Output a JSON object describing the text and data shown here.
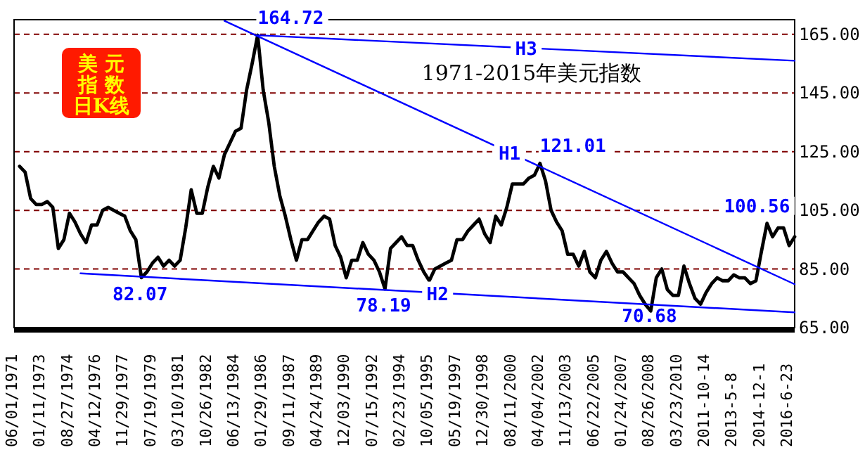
{
  "chart_data": {
    "type": "line",
    "title": "美元指数日K线",
    "subtitle": "1971-2015年美元指数",
    "categories": [
      "06/01/1971",
      null,
      null,
      null,
      null,
      "01/11/1973",
      null,
      null,
      null,
      null,
      "08/27/1974",
      null,
      null,
      null,
      null,
      "04/12/1976",
      null,
      null,
      null,
      null,
      "11/29/1977",
      null,
      null,
      null,
      null,
      "07/19/1979",
      null,
      null,
      null,
      null,
      "03/10/1981",
      null,
      null,
      null,
      null,
      "10/26/1982",
      null,
      null,
      null,
      null,
      "06/13/1984",
      null,
      null,
      null,
      null,
      "01/29/1986",
      null,
      null,
      null,
      null,
      "09/11/1987",
      null,
      null,
      null,
      null,
      "04/24/1989",
      null,
      null,
      null,
      null,
      "12/03/1990",
      null,
      null,
      null,
      null,
      "07/15/1992",
      null,
      null,
      null,
      null,
      "02/23/1994",
      null,
      null,
      null,
      null,
      "10/05/1995",
      null,
      null,
      null,
      null,
      "05/19/1997",
      null,
      null,
      null,
      null,
      "12/30/1998",
      null,
      null,
      null,
      null,
      "08/11/2000",
      null,
      null,
      null,
      null,
      "04/04/2002",
      null,
      null,
      null,
      null,
      "11/13/2003",
      null,
      null,
      null,
      null,
      "06/22/2005",
      null,
      null,
      null,
      null,
      "01/24/2007",
      null,
      null,
      null,
      null,
      "08/26/2008",
      null,
      null,
      null,
      null,
      "03/23/2010",
      null,
      null,
      null,
      null,
      "2011-10-14",
      null,
      null,
      null,
      null,
      "2013-5-8",
      null,
      null,
      null,
      null,
      "2014-12-1",
      null,
      null,
      null,
      null,
      "2016-6-23",
      null
    ],
    "series": [
      {
        "color": "#000000",
        "values": [
          null,
          120,
          118,
          109,
          107,
          107,
          108,
          106,
          92,
          95,
          104,
          101,
          97,
          94,
          100,
          100,
          105,
          106,
          105,
          104,
          103,
          98,
          95,
          82.07,
          84,
          87,
          89,
          86,
          88,
          86,
          88,
          99,
          112,
          104,
          104,
          113,
          120,
          116,
          124,
          128,
          132,
          133,
          146,
          155,
          164.72,
          146,
          135,
          120,
          110,
          103,
          95,
          88,
          95,
          95,
          98,
          101,
          103,
          102,
          93,
          89,
          82,
          88,
          88,
          94,
          90,
          88,
          84,
          78.19,
          92,
          94,
          96,
          93,
          93,
          88,
          84,
          81,
          85,
          86,
          87,
          88,
          95,
          95,
          98,
          100,
          102,
          97,
          94,
          103,
          100,
          106,
          114,
          114,
          114,
          116,
          117,
          121.01,
          115,
          105,
          101,
          98,
          90,
          90,
          86,
          91,
          84,
          82,
          88,
          91,
          87,
          84,
          84,
          82,
          80,
          76,
          73,
          70.68,
          82,
          85,
          78,
          76,
          76,
          86,
          80,
          75,
          73,
          77,
          80,
          82,
          81,
          81,
          83,
          82,
          82,
          80,
          81,
          91,
          100.56,
          96,
          99,
          99,
          93,
          96
        ],
        "value_labels": [
          null,
          null,
          null,
          null,
          null,
          null,
          null,
          null,
          null,
          null,
          null,
          null,
          null,
          null,
          null,
          null,
          null,
          null,
          null,
          null,
          null,
          null,
          null,
          "82.07",
          null,
          null,
          null,
          null,
          null,
          null,
          null,
          null,
          null,
          null,
          null,
          null,
          null,
          null,
          null,
          null,
          null,
          null,
          null,
          null,
          "164.72",
          null,
          null,
          null,
          null,
          null,
          null,
          null,
          null,
          null,
          null,
          null,
          null,
          null,
          null,
          null,
          null,
          null,
          null,
          null,
          null,
          null,
          null,
          "78.19",
          null,
          null,
          null,
          null,
          null,
          null,
          null,
          null,
          null,
          null,
          null,
          null,
          null,
          null,
          null,
          null,
          null,
          null,
          null,
          null,
          null,
          null,
          null,
          null,
          null,
          null,
          null,
          "121.01",
          null,
          null,
          null,
          null,
          null,
          null,
          null,
          null,
          null,
          null,
          null,
          null,
          null,
          null,
          null,
          null,
          null,
          null,
          null,
          "70.68",
          null,
          null,
          null,
          null,
          null,
          null,
          null,
          null,
          null,
          null,
          null,
          null,
          null,
          null,
          null,
          null,
          null,
          null,
          null,
          null,
          "100.56",
          null,
          null,
          null,
          null,
          null
        ]
      },
      {
        "name": "H1",
        "color": "#0000ff",
        "values": [
          null,
          null,
          null,
          null,
          null,
          null,
          null,
          null,
          null,
          null,
          null,
          null,
          null,
          null,
          null,
          null,
          null,
          null,
          null,
          null,
          null,
          null,
          null,
          null,
          null,
          null,
          null,
          null,
          null,
          null,
          null,
          null,
          null,
          null,
          null,
          null,
          null,
          null,
          169.6,
          null,
          null,
          null,
          null,
          null,
          null,
          null,
          null,
          null,
          null,
          null,
          null,
          null,
          null,
          null,
          null,
          null,
          null,
          null,
          null,
          null,
          null,
          null,
          null,
          null,
          null,
          null,
          null,
          null,
          null,
          null,
          null,
          null,
          null,
          null,
          null,
          null,
          null,
          null,
          null,
          null,
          null,
          null,
          null,
          null,
          null,
          null,
          null,
          null,
          null,
          null,
          null,
          null,
          null,
          null,
          null,
          null,
          null,
          null,
          null,
          null,
          null,
          null,
          null,
          null,
          null,
          null,
          null,
          null,
          null,
          null,
          null,
          null,
          null,
          null,
          null,
          null,
          null,
          null,
          null,
          null,
          null,
          null,
          null,
          null,
          null,
          null,
          null,
          null,
          null,
          null,
          null,
          null,
          null,
          null,
          null,
          null,
          null,
          null,
          null,
          null,
          null,
          79.8
        ]
      },
      {
        "name": "H2",
        "color": "#0000ff",
        "values": [
          null,
          null,
          null,
          null,
          null,
          null,
          null,
          null,
          null,
          null,
          null,
          null,
          83.5,
          null,
          null,
          null,
          null,
          null,
          null,
          null,
          null,
          null,
          null,
          null,
          null,
          null,
          null,
          null,
          null,
          null,
          null,
          null,
          null,
          null,
          null,
          null,
          null,
          null,
          null,
          null,
          null,
          null,
          null,
          null,
          null,
          null,
          null,
          null,
          null,
          null,
          null,
          null,
          null,
          null,
          null,
          null,
          null,
          null,
          null,
          null,
          null,
          null,
          null,
          null,
          null,
          null,
          null,
          null,
          null,
          null,
          null,
          null,
          null,
          null,
          null,
          null,
          null,
          null,
          null,
          null,
          null,
          null,
          null,
          null,
          null,
          null,
          null,
          null,
          null,
          null,
          null,
          null,
          null,
          null,
          null,
          null,
          null,
          null,
          null,
          null,
          null,
          null,
          null,
          null,
          null,
          null,
          null,
          null,
          null,
          null,
          null,
          null,
          null,
          null,
          null,
          null,
          null,
          null,
          null,
          null,
          null,
          null,
          null,
          null,
          null,
          null,
          null,
          null,
          null,
          null,
          null,
          null,
          null,
          null,
          null,
          null,
          null,
          null,
          null,
          null,
          null,
          70.2
        ]
      },
      {
        "name": "H3",
        "color": "#0000ff",
        "values": [
          null,
          null,
          null,
          null,
          null,
          null,
          null,
          null,
          null,
          null,
          null,
          null,
          null,
          null,
          null,
          null,
          null,
          null,
          null,
          null,
          null,
          null,
          null,
          null,
          null,
          null,
          null,
          null,
          null,
          null,
          null,
          null,
          null,
          null,
          null,
          null,
          null,
          null,
          null,
          null,
          null,
          null,
          null,
          null,
          164.7,
          null,
          null,
          null,
          null,
          null,
          null,
          null,
          null,
          null,
          null,
          null,
          null,
          null,
          null,
          null,
          null,
          null,
          null,
          null,
          null,
          null,
          null,
          null,
          null,
          null,
          null,
          null,
          null,
          null,
          null,
          null,
          null,
          null,
          null,
          null,
          null,
          null,
          null,
          null,
          null,
          null,
          null,
          null,
          null,
          null,
          null,
          null,
          null,
          null,
          null,
          null,
          null,
          null,
          null,
          null,
          null,
          null,
          null,
          null,
          null,
          null,
          null,
          null,
          null,
          null,
          null,
          null,
          null,
          null,
          null,
          null,
          null,
          null,
          null,
          null,
          null,
          null,
          null,
          null,
          null,
          null,
          null,
          null,
          null,
          null,
          null,
          null,
          null,
          null,
          null,
          null,
          null,
          null,
          null,
          null,
          null,
          156
        ]
      }
    ],
    "ylim": [
      65,
      170
    ],
    "yticks": [
      {
        "value": 65,
        "label": "65.00"
      },
      {
        "value": 85,
        "label": "85.00"
      },
      {
        "value": 105,
        "label": "105.00"
      },
      {
        "value": 125,
        "label": "125.00"
      },
      {
        "value": 145,
        "label": "145.00"
      },
      {
        "value": 165,
        "label": "165.00"
      }
    ],
    "grid": "y"
  }
}
